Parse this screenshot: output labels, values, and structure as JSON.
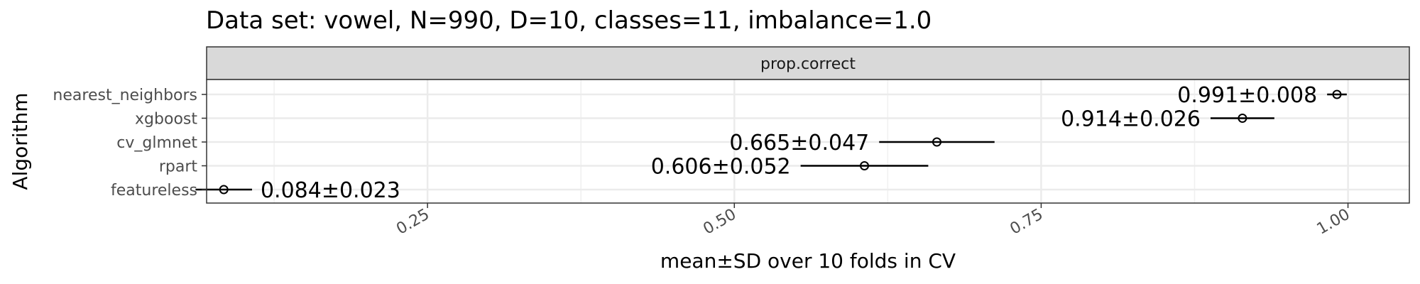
{
  "chart_data": {
    "type": "scatter",
    "title": "Data set: vowel, N=990, D=10, classes=11, imbalance=1.0",
    "facet": "prop.correct",
    "xlabel": "mean±SD over 10 folds in CV",
    "ylabel": "Algorithm",
    "xlim": [
      0.07,
      1.05
    ],
    "x_ticks": [
      0.25,
      0.5,
      0.75,
      1.0
    ],
    "x_tick_labels": [
      "0.25",
      "0.50",
      "0.75",
      "1.00"
    ],
    "grid": true,
    "series": [
      {
        "algorithm": "nearest_neighbors",
        "mean": 0.991,
        "sd": 0.008,
        "label": "0.991±0.008"
      },
      {
        "algorithm": "xgboost",
        "mean": 0.914,
        "sd": 0.026,
        "label": "0.914±0.026"
      },
      {
        "algorithm": "cv_glmnet",
        "mean": 0.665,
        "sd": 0.047,
        "label": "0.665±0.047"
      },
      {
        "algorithm": "rpart",
        "mean": 0.606,
        "sd": 0.052,
        "label": "0.606±0.052"
      },
      {
        "algorithm": "featureless",
        "mean": 0.084,
        "sd": 0.023,
        "label": "0.084±0.023"
      }
    ]
  }
}
